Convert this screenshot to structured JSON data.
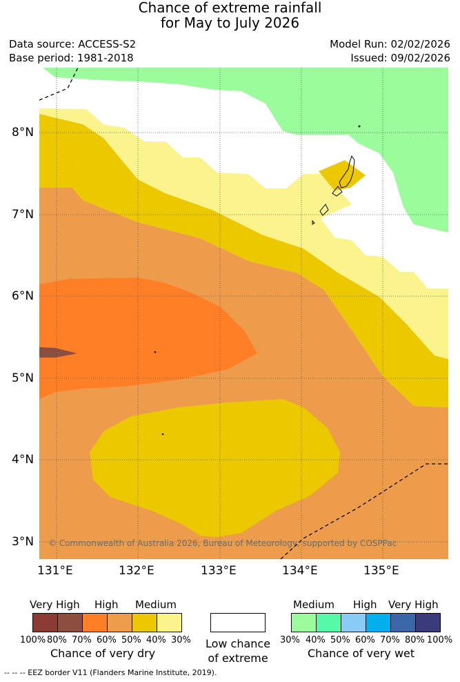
{
  "title": {
    "line1": "Chance of extreme rainfall",
    "line2": "for May to July 2026"
  },
  "meta": {
    "data_source": "Data source: ACCESS-S2",
    "base_period": "Base period: 1981-2018",
    "model_run": "Model Run: 02/02/2026",
    "issued": "Issued: 09/02/2026"
  },
  "map": {
    "lat_labels": [
      "8°N",
      "7°N",
      "6°N",
      "5°N",
      "4°N",
      "3°N"
    ],
    "lon_labels": [
      "131°E",
      "132°E",
      "133°E",
      "134°E",
      "135°E"
    ],
    "copyright": "© Commonwealth of Australia 2026, Bureau of Meteorology, supported by COSPPac",
    "colors": {
      "dry_100_80": "#8b3a34",
      "dry_80_70": "#8b4e3f",
      "dry_70_60": "#ff7f27",
      "dry_60_50": "#ec9c4a",
      "dry_50_40": "#ebc800",
      "dry_40_30": "#fbf38c",
      "low": "#ffffff",
      "wet_30_40": "#9afc9a"
    }
  },
  "legend": {
    "dry": {
      "categories": [
        "Very High",
        "High",
        "Medium"
      ],
      "percent_labels": [
        "100%",
        "80%",
        "70%",
        "60%",
        "50%",
        "40%",
        "30%"
      ],
      "caption": "Chance of very dry",
      "colors": [
        "#8b3a34",
        "#8b4e3f",
        "#ff7f27",
        "#ec9c4a",
        "#ebc800",
        "#fbf38c"
      ]
    },
    "low": {
      "line1": "Low chance",
      "line2": "of extreme",
      "color": "#ffffff"
    },
    "wet": {
      "categories": [
        "Medium",
        "High",
        "Very High"
      ],
      "percent_labels": [
        "30%",
        "40%",
        "50%",
        "60%",
        "70%",
        "80%",
        "100%"
      ],
      "caption": "Chance of very wet",
      "colors": [
        "#9afc9a",
        "#57f9a8",
        "#89cdf6",
        "#00b0ec",
        "#3a65a6",
        "#3b3b7c"
      ]
    }
  },
  "footer": {
    "eez_text": "--  --  -- EEZ border V11 (Flanders Marine Institute, 2019)."
  }
}
